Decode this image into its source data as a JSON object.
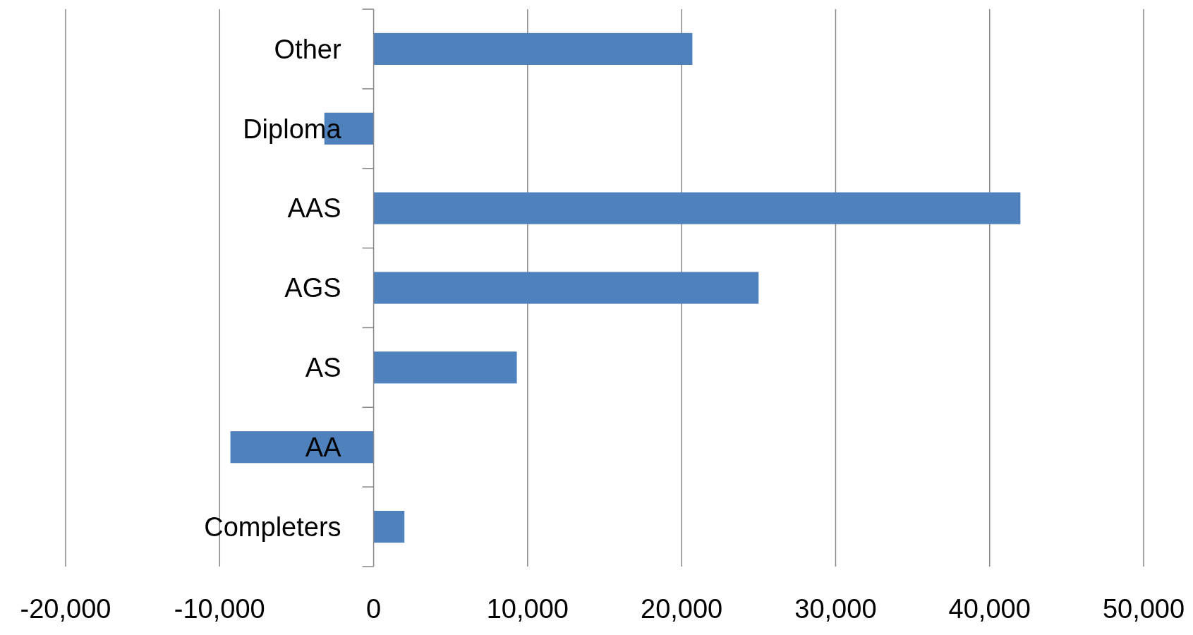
{
  "chart_data": {
    "type": "bar",
    "orientation": "horizontal",
    "categories": [
      "Other",
      "Diploma",
      "AAS",
      "AGS",
      "AS",
      "AA",
      "Completers"
    ],
    "values": [
      20700,
      -3200,
      42000,
      25000,
      9300,
      -9300,
      2000
    ],
    "color": "#4f81bd",
    "xlim": [
      -20000,
      50000
    ],
    "xticks": [
      {
        "value": -20000,
        "label": "-20,000"
      },
      {
        "value": -10000,
        "label": "-10,000"
      },
      0,
      {
        "value": 10000,
        "label": "10,000"
      },
      {
        "value": 20000,
        "label": "20,000"
      },
      {
        "value": 30000,
        "label": "30,000"
      },
      {
        "value": 40000,
        "label": "40,000"
      },
      {
        "value": 50000,
        "label": "50,000"
      }
    ],
    "grid": "x"
  }
}
